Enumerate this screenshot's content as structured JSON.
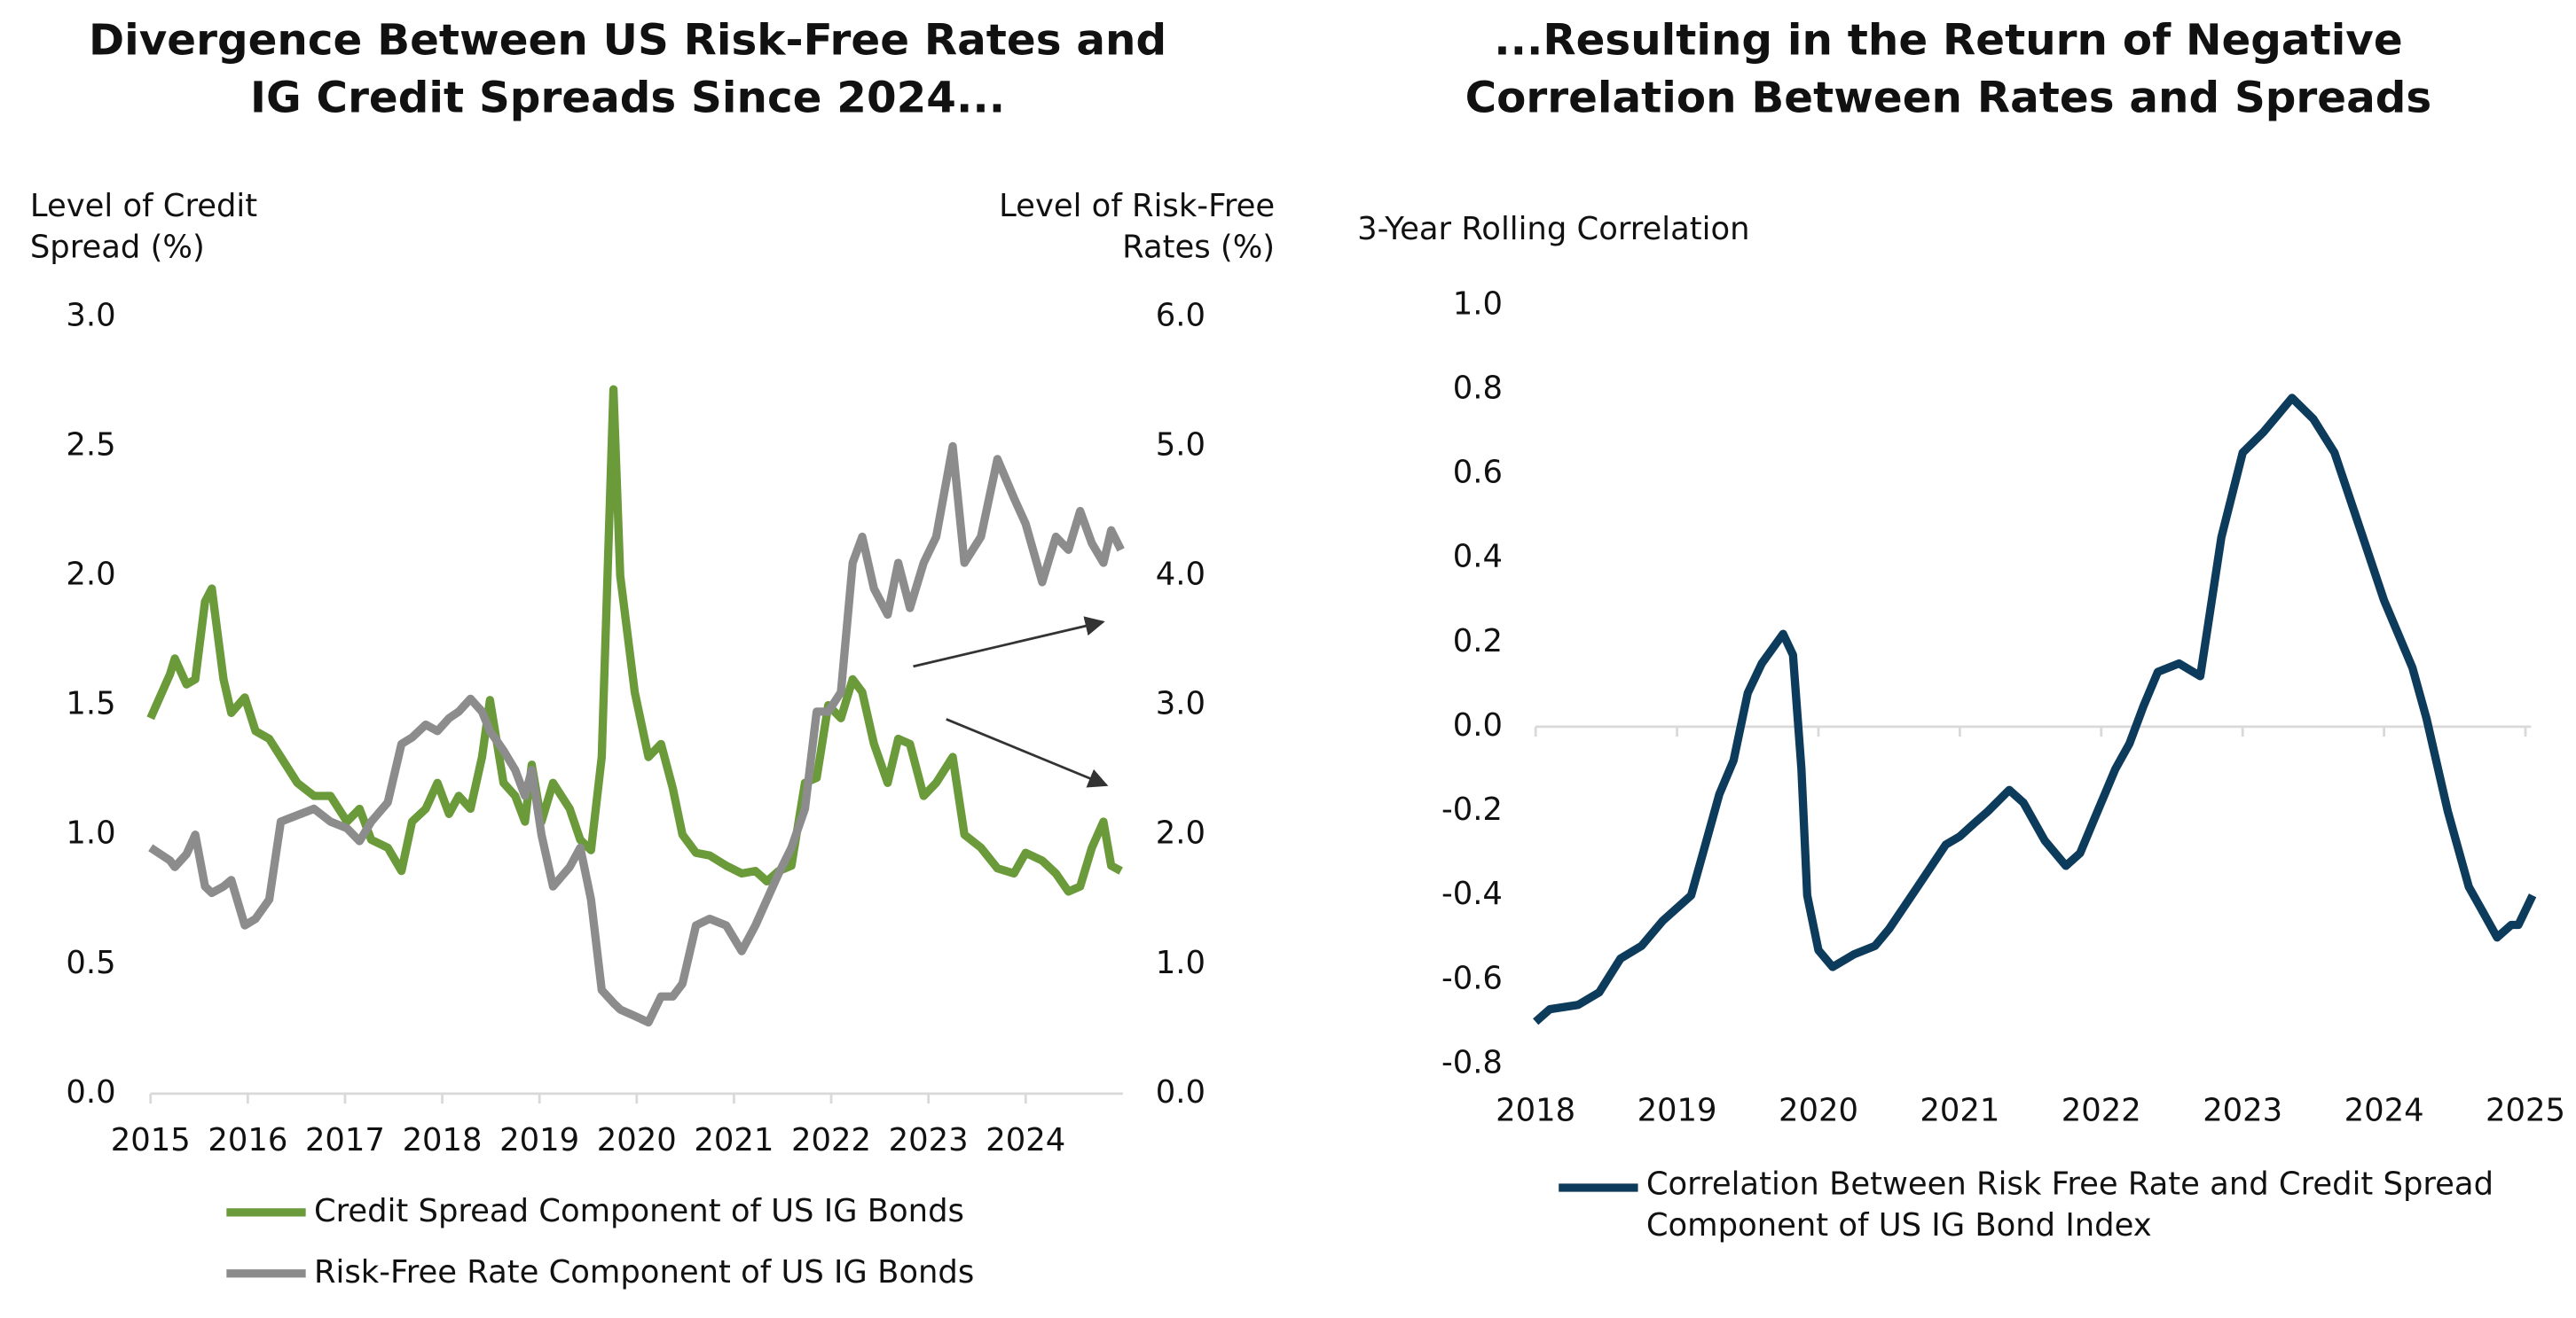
{
  "chart_data": [
    {
      "type": "line",
      "title": "Divergence Between US Risk-Free Rates and IG Credit Spreads Since 2024...",
      "y_label": "Level of Credit Spread (%)",
      "y2_label": "Level of Risk-Free Rates (%)",
      "x": [
        2015.0,
        2015.2,
        2015.25,
        2015.37,
        2015.46,
        2015.56,
        2015.63,
        2015.75,
        2015.83,
        2015.97,
        2016.08,
        2016.22,
        2016.34,
        2016.51,
        2016.68,
        2016.85,
        2017.02,
        2017.15,
        2017.27,
        2017.44,
        2017.58,
        2017.69,
        2017.83,
        2017.95,
        2018.07,
        2018.17,
        2018.29,
        2018.41,
        2018.49,
        2018.63,
        2018.75,
        2018.85,
        2018.92,
        2019.02,
        2019.14,
        2019.31,
        2019.42,
        2019.53,
        2019.64,
        2019.76,
        2019.83,
        2019.98,
        2020.12,
        2020.25,
        2020.37,
        2020.47,
        2020.61,
        2020.75,
        2020.92,
        2021.08,
        2021.22,
        2021.34,
        2021.46,
        2021.59,
        2021.73,
        2021.85,
        2021.97,
        2022.1,
        2022.22,
        2022.32,
        2022.44,
        2022.58,
        2022.69,
        2022.81,
        2022.95,
        2023.08,
        2023.25,
        2023.37,
        2023.54,
        2023.71,
        2023.88,
        2024.0,
        2024.17,
        2024.31,
        2024.44,
        2024.56,
        2024.68,
        2024.8,
        2024.88,
        2024.98
      ],
      "series": [
        {
          "name": "Credit Spread Component of US IG Bonds",
          "color": "#6a9a3a",
          "axis": "y",
          "values": [
            1.45,
            1.62,
            1.68,
            1.58,
            1.6,
            1.9,
            1.95,
            1.6,
            1.47,
            1.53,
            1.4,
            1.37,
            1.3,
            1.2,
            1.15,
            1.15,
            1.05,
            1.1,
            0.98,
            0.95,
            0.86,
            1.05,
            1.1,
            1.2,
            1.08,
            1.15,
            1.1,
            1.3,
            1.52,
            1.2,
            1.15,
            1.05,
            1.27,
            1.05,
            1.2,
            1.1,
            0.98,
            0.94,
            1.3,
            2.72,
            2.0,
            1.55,
            1.3,
            1.35,
            1.18,
            1.0,
            0.93,
            0.92,
            0.88,
            0.85,
            0.86,
            0.82,
            0.86,
            0.88,
            1.2,
            1.22,
            1.5,
            1.45,
            1.6,
            1.55,
            1.35,
            1.2,
            1.37,
            1.35,
            1.15,
            1.2,
            1.3,
            1.0,
            0.95,
            0.87,
            0.85,
            0.93,
            0.9,
            0.85,
            0.78,
            0.8,
            0.95,
            1.05,
            0.88,
            0.86
          ]
        },
        {
          "name": "Risk-Free Rate Component of US IG Bonds",
          "color": "#8c8c8c",
          "axis": "y2",
          "values": [
            1.9,
            1.8,
            1.75,
            1.85,
            2.0,
            1.6,
            1.55,
            1.6,
            1.65,
            1.3,
            1.35,
            1.5,
            2.1,
            2.15,
            2.2,
            2.1,
            2.05,
            1.95,
            2.1,
            2.25,
            2.7,
            2.75,
            2.85,
            2.8,
            2.9,
            2.95,
            3.05,
            2.95,
            2.8,
            2.65,
            2.5,
            2.3,
            2.5,
            2.0,
            1.6,
            1.75,
            1.9,
            1.5,
            0.8,
            0.7,
            0.65,
            0.6,
            0.55,
            0.75,
            0.75,
            0.85,
            1.3,
            1.35,
            1.3,
            1.1,
            1.3,
            1.5,
            1.7,
            1.9,
            2.2,
            2.95,
            2.95,
            3.1,
            4.1,
            4.3,
            3.9,
            3.7,
            4.1,
            3.75,
            4.1,
            4.3,
            5.0,
            4.1,
            4.3,
            4.9,
            4.6,
            4.4,
            3.95,
            4.3,
            4.2,
            4.5,
            4.25,
            4.1,
            4.35,
            4.2
          ]
        }
      ],
      "xlim": [
        2015,
        2025
      ],
      "xticks": [
        2015,
        2016,
        2017,
        2018,
        2019,
        2020,
        2021,
        2022,
        2023,
        2024
      ],
      "ylim": [
        0,
        3
      ],
      "yticks": [
        {
          "value": 0,
          "label": "0.0"
        },
        0.5,
        {
          "value": 1,
          "label": "1.0"
        },
        1.5,
        {
          "value": 2,
          "label": "2.0"
        },
        2.5,
        {
          "value": 3,
          "label": "3.0"
        }
      ],
      "y2lim": [
        0,
        6
      ],
      "y2ticks": [
        {
          "value": 0,
          "label": "0.0"
        },
        {
          "value": 1,
          "label": "1.0"
        },
        {
          "value": 2,
          "label": "2.0"
        },
        {
          "value": 3,
          "label": "3.0"
        },
        {
          "value": 4,
          "label": "4.0"
        },
        {
          "value": 5,
          "label": "5.0"
        },
        {
          "value": 6,
          "label": "6.0"
        }
      ],
      "grid": false,
      "legend": "bottom"
    },
    {
      "type": "line",
      "title": "...Resulting in the Return of Negative Correlation Between Rates and Spreads",
      "y_label": "3-Year Rolling Correlation",
      "x": [
        2018.0,
        2018.1,
        2018.3,
        2018.45,
        2018.6,
        2018.75,
        2018.9,
        2019.1,
        2019.2,
        2019.3,
        2019.4,
        2019.5,
        2019.6,
        2019.75,
        2019.82,
        2019.88,
        2019.92,
        2020.0,
        2020.1,
        2020.25,
        2020.4,
        2020.5,
        2020.7,
        2020.9,
        2021.0,
        2021.1,
        2021.2,
        2021.35,
        2021.45,
        2021.6,
        2021.75,
        2021.85,
        2021.95,
        2022.1,
        2022.2,
        2022.3,
        2022.4,
        2022.55,
        2022.7,
        2022.85,
        2023.0,
        2023.15,
        2023.25,
        2023.35,
        2023.5,
        2023.65,
        2023.8,
        2024.0,
        2024.2,
        2024.3,
        2024.45,
        2024.6,
        2024.7,
        2024.8,
        2024.9,
        2024.95,
        2025.05
      ],
      "series": [
        {
          "name": "Correlation Between Risk Free Rate and Credit Spread Component of US IG Bond Index",
          "color": "#0d3b5c",
          "values": [
            -0.7,
            -0.67,
            -0.66,
            -0.63,
            -0.55,
            -0.52,
            -0.46,
            -0.4,
            -0.28,
            -0.16,
            -0.08,
            0.08,
            0.15,
            0.22,
            0.17,
            -0.1,
            -0.4,
            -0.53,
            -0.57,
            -0.54,
            -0.52,
            -0.48,
            -0.38,
            -0.28,
            -0.26,
            -0.23,
            -0.2,
            -0.15,
            -0.18,
            -0.27,
            -0.33,
            -0.3,
            -0.22,
            -0.1,
            -0.04,
            0.05,
            0.13,
            0.15,
            0.12,
            0.45,
            0.65,
            0.7,
            0.74,
            0.78,
            0.73,
            0.65,
            0.5,
            0.3,
            0.14,
            0.02,
            -0.2,
            -0.38,
            -0.44,
            -0.5,
            -0.47,
            -0.47,
            -0.4
          ]
        }
      ],
      "xlim": [
        2018,
        2025.04
      ],
      "xticks": [
        2018,
        2019,
        2020,
        2021,
        2022,
        2023,
        2024,
        2025
      ],
      "ylim": [
        -0.8,
        1.0
      ],
      "yticks": [
        {
          "value": 1,
          "label": "1.0"
        },
        0.8,
        0.6,
        0.4,
        0.2,
        {
          "value": 0,
          "label": "0.0"
        },
        -0.2,
        -0.4,
        -0.6,
        -0.8
      ],
      "grid": false,
      "legend": "bottom"
    }
  ]
}
